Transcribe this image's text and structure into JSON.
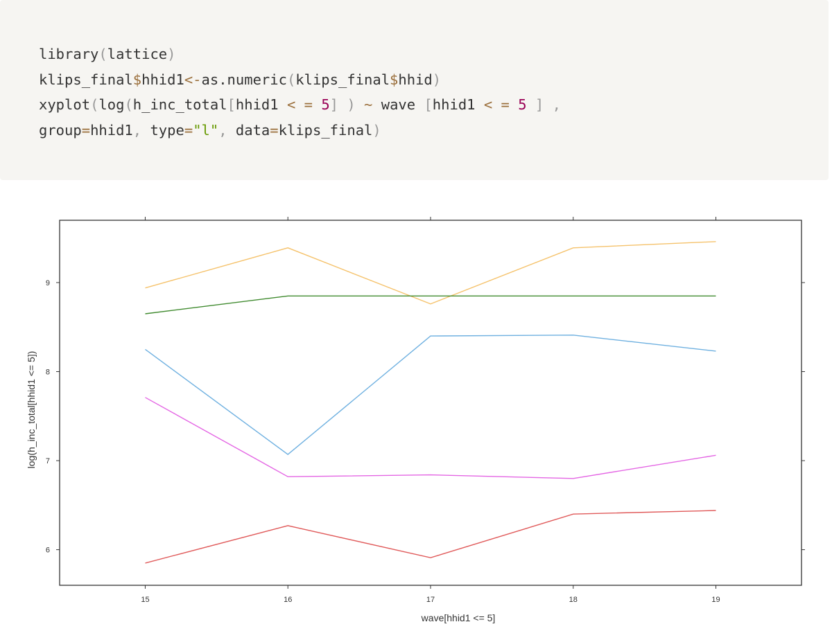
{
  "code": {
    "lines": [
      [
        {
          "t": "library",
          "c": "plain"
        },
        {
          "t": "(",
          "c": "punc"
        },
        {
          "t": "lattice",
          "c": "plain"
        },
        {
          "t": ")",
          "c": "punc"
        }
      ],
      [
        {
          "t": "klips_final",
          "c": "plain"
        },
        {
          "t": "$",
          "c": "op"
        },
        {
          "t": "hhid1",
          "c": "plain"
        },
        {
          "t": "<-",
          "c": "op"
        },
        {
          "t": "as.numeric",
          "c": "plain"
        },
        {
          "t": "(",
          "c": "punc"
        },
        {
          "t": "klips_final",
          "c": "plain"
        },
        {
          "t": "$",
          "c": "op"
        },
        {
          "t": "hhid",
          "c": "plain"
        },
        {
          "t": ")",
          "c": "punc"
        }
      ],
      [
        {
          "t": "xyplot",
          "c": "plain"
        },
        {
          "t": "(",
          "c": "punc"
        },
        {
          "t": "log",
          "c": "plain"
        },
        {
          "t": "(",
          "c": "punc"
        },
        {
          "t": "h_inc_total",
          "c": "plain"
        },
        {
          "t": "[",
          "c": "punc"
        },
        {
          "t": "hhid1 ",
          "c": "plain"
        },
        {
          "t": "<",
          "c": "op"
        },
        {
          "t": " ",
          "c": "plain"
        },
        {
          "t": "=",
          "c": "op"
        },
        {
          "t": " ",
          "c": "plain"
        },
        {
          "t": "5",
          "c": "num"
        },
        {
          "t": "]",
          "c": "punc"
        },
        {
          "t": " ",
          "c": "plain"
        },
        {
          "t": ")",
          "c": "punc"
        },
        {
          "t": " ",
          "c": "plain"
        },
        {
          "t": "~",
          "c": "op"
        },
        {
          "t": " wave ",
          "c": "plain"
        },
        {
          "t": "[",
          "c": "punc"
        },
        {
          "t": "hhid1 ",
          "c": "plain"
        },
        {
          "t": "<",
          "c": "op"
        },
        {
          "t": " ",
          "c": "plain"
        },
        {
          "t": "=",
          "c": "op"
        },
        {
          "t": " ",
          "c": "plain"
        },
        {
          "t": "5",
          "c": "num"
        },
        {
          "t": " ",
          "c": "plain"
        },
        {
          "t": "]",
          "c": "punc"
        },
        {
          "t": " ",
          "c": "plain"
        },
        {
          "t": ",",
          "c": "punc"
        }
      ],
      [
        {
          "t": "group",
          "c": "plain"
        },
        {
          "t": "=",
          "c": "op"
        },
        {
          "t": "hhid1",
          "c": "plain"
        },
        {
          "t": ",",
          "c": "punc"
        },
        {
          "t": " type",
          "c": "plain"
        },
        {
          "t": "=",
          "c": "op"
        },
        {
          "t": "\"l\"",
          "c": "str"
        },
        {
          "t": ",",
          "c": "punc"
        },
        {
          "t": " data",
          "c": "plain"
        },
        {
          "t": "=",
          "c": "op"
        },
        {
          "t": "klips_final",
          "c": "plain"
        },
        {
          "t": ")",
          "c": "punc"
        }
      ]
    ]
  },
  "chart_data": {
    "type": "line",
    "xlabel": "wave[hhid1 <= 5]",
    "ylabel": "log(h_inc_total[hhid1 <= 5])",
    "x": [
      15,
      16,
      17,
      18,
      19
    ],
    "x_ticks": [
      "15",
      "16",
      "17",
      "18",
      "19"
    ],
    "y_ticks": [
      "6",
      "7",
      "8",
      "9"
    ],
    "xlim": [
      14.4,
      19.6
    ],
    "ylim": [
      5.6,
      9.7
    ],
    "grid": false,
    "series": [
      {
        "color": "#f5c26b",
        "values": [
          8.94,
          9.39,
          8.76,
          9.39,
          9.46
        ]
      },
      {
        "color": "#3f8a2e",
        "values": [
          8.65,
          8.85,
          8.85,
          8.85,
          8.85
        ]
      },
      {
        "color": "#6eb0e0",
        "values": [
          8.25,
          7.07,
          8.4,
          8.41,
          8.23
        ]
      },
      {
        "color": "#e466e4",
        "values": [
          7.71,
          6.82,
          6.84,
          6.8,
          7.06
        ]
      },
      {
        "color": "#e05a5a",
        "values": [
          5.85,
          6.27,
          5.91,
          6.4,
          6.44
        ]
      }
    ]
  }
}
